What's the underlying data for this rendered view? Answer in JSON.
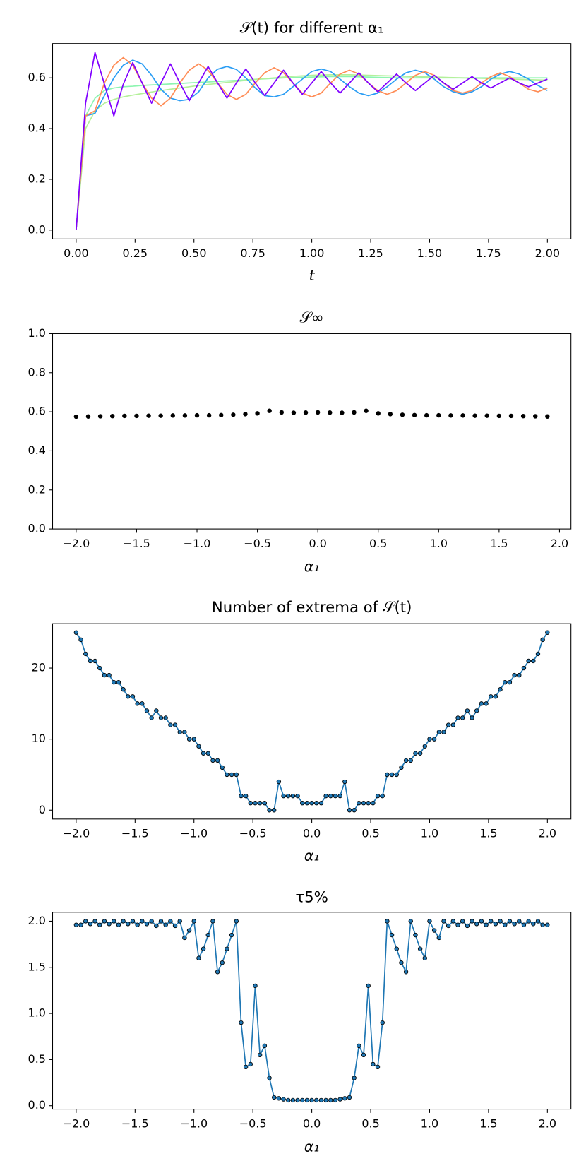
{
  "chart_data": [
    {
      "type": "line",
      "title": "𝒮(t) for different α₁",
      "x_label": "t",
      "x": [
        0,
        0.04,
        0.08,
        0.12,
        0.16,
        0.2,
        0.24,
        0.28,
        0.32,
        0.36,
        0.4,
        0.44,
        0.48,
        0.52,
        0.56,
        0.6,
        0.64,
        0.68,
        0.72,
        0.76,
        0.8,
        0.84,
        0.88,
        0.92,
        0.96,
        1,
        1.04,
        1.08,
        1.12,
        1.16,
        1.2,
        1.24,
        1.28,
        1.32,
        1.36,
        1.4,
        1.44,
        1.48,
        1.52,
        1.56,
        1.6,
        1.64,
        1.68,
        1.72,
        1.76,
        1.8,
        1.84,
        1.88,
        1.92,
        1.96,
        2
      ],
      "series": [
        {
          "color": "#8cf5b0",
          "values": [
            0,
            0.45,
            0.52,
            0.55,
            0.56,
            0.565,
            0.567,
            0.57,
            0.572,
            0.574,
            0.576,
            0.578,
            0.58,
            0.582,
            0.584,
            0.586,
            0.588,
            0.59,
            0.592,
            0.594,
            0.596,
            0.598,
            0.6,
            0.601,
            0.602,
            0.603,
            0.604,
            0.605,
            0.605,
            0.605,
            0.604,
            0.603,
            0.602,
            0.601,
            0.6,
            0.6,
            0.6,
            0.6,
            0.6,
            0.6,
            0.6,
            0.6,
            0.6,
            0.6,
            0.6,
            0.6,
            0.6,
            0.6,
            0.6,
            0.6,
            0.6
          ]
        },
        {
          "color": "#b4f09a",
          "values": [
            0,
            0.4,
            0.47,
            0.5,
            0.515,
            0.525,
            0.532,
            0.538,
            0.544,
            0.55,
            0.555,
            0.56,
            0.565,
            0.57,
            0.574,
            0.578,
            0.582,
            0.586,
            0.59,
            0.594,
            0.597,
            0.6,
            0.603,
            0.606,
            0.608,
            0.61,
            0.611,
            0.612,
            0.612,
            0.612,
            0.611,
            0.61,
            0.609,
            0.608,
            0.607,
            0.606,
            0.605,
            0.604,
            0.603,
            0.602,
            0.601,
            0.6,
            0.599,
            0.598,
            0.597,
            0.596,
            0.595,
            0.594,
            0.593,
            0.592,
            0.591
          ]
        },
        {
          "color": "#2a9df4",
          "values": [
            0,
            0.45,
            0.46,
            0.53,
            0.6,
            0.65,
            0.67,
            0.655,
            0.61,
            0.555,
            0.52,
            0.51,
            0.515,
            0.545,
            0.6,
            0.634,
            0.645,
            0.633,
            0.6,
            0.56,
            0.53,
            0.525,
            0.535,
            0.565,
            0.595,
            0.625,
            0.635,
            0.625,
            0.595,
            0.565,
            0.54,
            0.53,
            0.54,
            0.565,
            0.595,
            0.62,
            0.63,
            0.62,
            0.595,
            0.565,
            0.545,
            0.535,
            0.545,
            0.565,
            0.595,
            0.615,
            0.625,
            0.615,
            0.595,
            0.57,
            0.55
          ]
        },
        {
          "color": "#ff8c55",
          "values": [
            0,
            0.45,
            0.47,
            0.58,
            0.65,
            0.68,
            0.65,
            0.58,
            0.52,
            0.49,
            0.52,
            0.58,
            0.63,
            0.655,
            0.63,
            0.58,
            0.535,
            0.515,
            0.535,
            0.58,
            0.62,
            0.64,
            0.62,
            0.58,
            0.54,
            0.525,
            0.54,
            0.58,
            0.615,
            0.63,
            0.615,
            0.58,
            0.55,
            0.535,
            0.55,
            0.58,
            0.61,
            0.625,
            0.61,
            0.58,
            0.55,
            0.54,
            0.55,
            0.58,
            0.605,
            0.62,
            0.605,
            0.58,
            0.555,
            0.545,
            0.56
          ]
        },
        {
          "color": "#8000ff",
          "values": [
            0,
            0.5,
            0.7,
            0.575,
            0.45,
            0.575,
            0.66,
            0.58,
            0.5,
            0.58,
            0.655,
            0.58,
            0.51,
            0.58,
            0.645,
            0.58,
            0.52,
            0.58,
            0.635,
            0.58,
            0.53,
            0.58,
            0.63,
            0.58,
            0.535,
            0.58,
            0.625,
            0.58,
            0.54,
            0.58,
            0.62,
            0.58,
            0.545,
            0.58,
            0.615,
            0.58,
            0.55,
            0.58,
            0.61,
            0.58,
            0.555,
            0.58,
            0.605,
            0.58,
            0.56,
            0.58,
            0.6,
            0.58,
            0.565,
            0.58,
            0.595
          ]
        }
      ],
      "xlim": [
        -0.1,
        2.1
      ],
      "ylim": [
        -0.035,
        0.735
      ],
      "xticks": [
        {
          "value": 0,
          "label": "0.00"
        },
        {
          "value": 0.25,
          "label": "0.25"
        },
        {
          "value": 0.5,
          "label": "0.50"
        },
        {
          "value": 0.75,
          "label": "0.75"
        },
        {
          "value": 1,
          "label": "1.00"
        },
        {
          "value": 1.25,
          "label": "1.25"
        },
        {
          "value": 1.5,
          "label": "1.50"
        },
        {
          "value": 1.75,
          "label": "1.75"
        },
        {
          "value": 2,
          "label": "2.00"
        }
      ],
      "yticks": [
        {
          "value": 0,
          "label": "0.0"
        },
        {
          "value": 0.2,
          "label": "0.2"
        },
        {
          "value": 0.4,
          "label": "0.4"
        },
        {
          "value": 0.6,
          "label": "0.6"
        }
      ]
    },
    {
      "type": "scatter",
      "title": "𝒮∞",
      "x_label": "α₁",
      "color": "#000000",
      "x": [
        -2,
        -1.9,
        -1.8,
        -1.7,
        -1.6,
        -1.5,
        -1.4,
        -1.3,
        -1.2,
        -1.1,
        -1,
        -0.9,
        -0.8,
        -0.7,
        -0.6,
        -0.5,
        -0.4,
        -0.3,
        -0.2,
        -0.1,
        0,
        0.1,
        0.2,
        0.3,
        0.4,
        0.5,
        0.6,
        0.7,
        0.8,
        0.9,
        1,
        1.1,
        1.2,
        1.3,
        1.4,
        1.5,
        1.6,
        1.7,
        1.8,
        1.9
      ],
      "values": [
        0.575,
        0.576,
        0.577,
        0.578,
        0.579,
        0.579,
        0.58,
        0.58,
        0.581,
        0.581,
        0.582,
        0.582,
        0.583,
        0.585,
        0.588,
        0.592,
        0.605,
        0.597,
        0.595,
        0.596,
        0.597,
        0.596,
        0.595,
        0.597,
        0.605,
        0.592,
        0.588,
        0.585,
        0.583,
        0.582,
        0.582,
        0.581,
        0.581,
        0.58,
        0.58,
        0.579,
        0.579,
        0.578,
        0.577,
        0.576
      ],
      "xlim": [
        -2.195,
        2.095
      ],
      "ylim": [
        0,
        1
      ],
      "xticks": [
        {
          "value": -2,
          "label": "−2.0"
        },
        {
          "value": -1.5,
          "label": "−1.5"
        },
        {
          "value": -1,
          "label": "−1.0"
        },
        {
          "value": -0.5,
          "label": "−0.5"
        },
        {
          "value": 0,
          "label": "0.0"
        },
        {
          "value": 0.5,
          "label": "0.5"
        },
        {
          "value": 1,
          "label": "1.0"
        },
        {
          "value": 1.5,
          "label": "1.5"
        },
        {
          "value": 2,
          "label": "2.0"
        }
      ],
      "yticks": [
        {
          "value": 0,
          "label": "0.0"
        },
        {
          "value": 0.2,
          "label": "0.2"
        },
        {
          "value": 0.4,
          "label": "0.4"
        },
        {
          "value": 0.6,
          "label": "0.6"
        },
        {
          "value": 0.8,
          "label": "0.8"
        },
        {
          "value": 1,
          "label": "1.0"
        }
      ]
    },
    {
      "type": "line",
      "title": "Number of extrema of 𝒮(t)",
      "x_label": "α₁",
      "color": "#1f77b4",
      "markers": true,
      "marker_edge_color": "#000000",
      "x": [
        -2,
        -1.96,
        -1.92,
        -1.88,
        -1.84,
        -1.8,
        -1.76,
        -1.72,
        -1.68,
        -1.64,
        -1.6,
        -1.56,
        -1.52,
        -1.48,
        -1.44,
        -1.4,
        -1.36,
        -1.32,
        -1.28,
        -1.24,
        -1.2,
        -1.16,
        -1.12,
        -1.08,
        -1.04,
        -1,
        -0.96,
        -0.92,
        -0.88,
        -0.84,
        -0.8,
        -0.76,
        -0.72,
        -0.68,
        -0.64,
        -0.6,
        -0.56,
        -0.52,
        -0.48,
        -0.44,
        -0.4,
        -0.36,
        -0.32,
        -0.28,
        -0.24,
        -0.2,
        -0.16,
        -0.12,
        -0.08,
        -0.04,
        0,
        0.04,
        0.08,
        0.12,
        0.16,
        0.2,
        0.24,
        0.28,
        0.32,
        0.36,
        0.4,
        0.44,
        0.48,
        0.52,
        0.56,
        0.6,
        0.64,
        0.68,
        0.72,
        0.76,
        0.8,
        0.84,
        0.88,
        0.92,
        0.96,
        1,
        1.04,
        1.08,
        1.12,
        1.16,
        1.2,
        1.24,
        1.28,
        1.32,
        1.36,
        1.4,
        1.44,
        1.48,
        1.52,
        1.56,
        1.6,
        1.64,
        1.68,
        1.72,
        1.76,
        1.8,
        1.84,
        1.88,
        1.92,
        1.96,
        2
      ],
      "values": [
        25,
        24,
        22,
        21,
        21,
        20,
        19,
        19,
        18,
        18,
        17,
        16,
        16,
        15,
        15,
        14,
        13,
        14,
        13,
        13,
        12,
        12,
        11,
        11,
        10,
        10,
        9,
        8,
        8,
        7,
        7,
        6,
        5,
        5,
        5,
        2,
        2,
        1,
        1,
        1,
        1,
        0,
        0,
        4,
        2,
        2,
        2,
        2,
        1,
        1,
        1,
        1,
        1,
        2,
        2,
        2,
        2,
        4,
        0,
        0,
        1,
        1,
        1,
        1,
        2,
        2,
        5,
        5,
        5,
        6,
        7,
        7,
        8,
        8,
        9,
        10,
        10,
        11,
        11,
        12,
        12,
        13,
        13,
        14,
        13,
        14,
        15,
        15,
        16,
        16,
        17,
        18,
        18,
        19,
        19,
        20,
        21,
        21,
        22,
        24,
        25
      ],
      "xlim": [
        -2.2,
        2.2
      ],
      "ylim": [
        -1.25,
        26.25
      ],
      "xticks": [
        {
          "value": -2,
          "label": "−2.0"
        },
        {
          "value": -1.5,
          "label": "−1.5"
        },
        {
          "value": -1,
          "label": "−1.0"
        },
        {
          "value": -0.5,
          "label": "−0.5"
        },
        {
          "value": 0,
          "label": "0.0"
        },
        {
          "value": 0.5,
          "label": "0.5"
        },
        {
          "value": 1,
          "label": "1.0"
        },
        {
          "value": 1.5,
          "label": "1.5"
        },
        {
          "value": 2,
          "label": "2.0"
        }
      ],
      "yticks": [
        0,
        10,
        20
      ]
    },
    {
      "type": "line",
      "title": "τ5%",
      "x_label": "α₁",
      "color": "#1f77b4",
      "markers": true,
      "marker_edge_color": "#000000",
      "x": [
        -2,
        -1.96,
        -1.92,
        -1.88,
        -1.84,
        -1.8,
        -1.76,
        -1.72,
        -1.68,
        -1.64,
        -1.6,
        -1.56,
        -1.52,
        -1.48,
        -1.44,
        -1.4,
        -1.36,
        -1.32,
        -1.28,
        -1.24,
        -1.2,
        -1.16,
        -1.12,
        -1.08,
        -1.04,
        -1,
        -0.96,
        -0.92,
        -0.88,
        -0.84,
        -0.8,
        -0.76,
        -0.72,
        -0.68,
        -0.64,
        -0.6,
        -0.56,
        -0.52,
        -0.48,
        -0.44,
        -0.4,
        -0.36,
        -0.32,
        -0.28,
        -0.24,
        -0.2,
        -0.16,
        -0.12,
        -0.08,
        -0.04,
        0,
        0.04,
        0.08,
        0.12,
        0.16,
        0.2,
        0.24,
        0.28,
        0.32,
        0.36,
        0.4,
        0.44,
        0.48,
        0.52,
        0.56,
        0.6,
        0.64,
        0.68,
        0.72,
        0.76,
        0.8,
        0.84,
        0.88,
        0.92,
        0.96,
        1,
        1.04,
        1.08,
        1.12,
        1.16,
        1.2,
        1.24,
        1.28,
        1.32,
        1.36,
        1.4,
        1.44,
        1.48,
        1.52,
        1.56,
        1.6,
        1.64,
        1.68,
        1.72,
        1.76,
        1.8,
        1.84,
        1.88,
        1.92,
        1.96,
        2
      ],
      "values": [
        1.96,
        1.96,
        2,
        1.97,
        2,
        1.96,
        2,
        1.97,
        2,
        1.96,
        2,
        1.97,
        2,
        1.96,
        2,
        1.97,
        2,
        1.95,
        2,
        1.96,
        2,
        1.95,
        2,
        1.82,
        1.9,
        2,
        1.6,
        1.7,
        1.85,
        2,
        1.45,
        1.55,
        1.7,
        1.85,
        2,
        0.9,
        0.42,
        0.45,
        1.3,
        0.55,
        0.65,
        0.3,
        0.09,
        0.08,
        0.07,
        0.06,
        0.06,
        0.06,
        0.06,
        0.06,
        0.06,
        0.06,
        0.06,
        0.06,
        0.06,
        0.06,
        0.07,
        0.08,
        0.09,
        0.3,
        0.65,
        0.55,
        1.3,
        0.45,
        0.42,
        0.9,
        2,
        1.85,
        1.7,
        1.55,
        1.45,
        2,
        1.85,
        1.7,
        1.6,
        2,
        1.9,
        1.82,
        2,
        1.95,
        2,
        1.96,
        2,
        1.95,
        2,
        1.97,
        2,
        1.96,
        2,
        1.97,
        2,
        1.96,
        2,
        1.97,
        2,
        1.96,
        2,
        1.97,
        2,
        1.96,
        1.96
      ],
      "xlim": [
        -2.2,
        2.2
      ],
      "ylim": [
        -0.037,
        2.097
      ],
      "xticks": [
        {
          "value": -2,
          "label": "−2.0"
        },
        {
          "value": -1.5,
          "label": "−1.5"
        },
        {
          "value": -1,
          "label": "−1.0"
        },
        {
          "value": -0.5,
          "label": "−0.5"
        },
        {
          "value": 0,
          "label": "0.0"
        },
        {
          "value": 0.5,
          "label": "0.5"
        },
        {
          "value": 1,
          "label": "1.0"
        },
        {
          "value": 1.5,
          "label": "1.5"
        },
        {
          "value": 2,
          "label": "2.0"
        }
      ],
      "yticks": [
        {
          "value": 0,
          "label": "0.0"
        },
        {
          "value": 0.5,
          "label": "0.5"
        },
        {
          "value": 1,
          "label": "1.0"
        },
        {
          "value": 1.5,
          "label": "1.5"
        },
        {
          "value": 2,
          "label": "2.0"
        }
      ]
    }
  ]
}
